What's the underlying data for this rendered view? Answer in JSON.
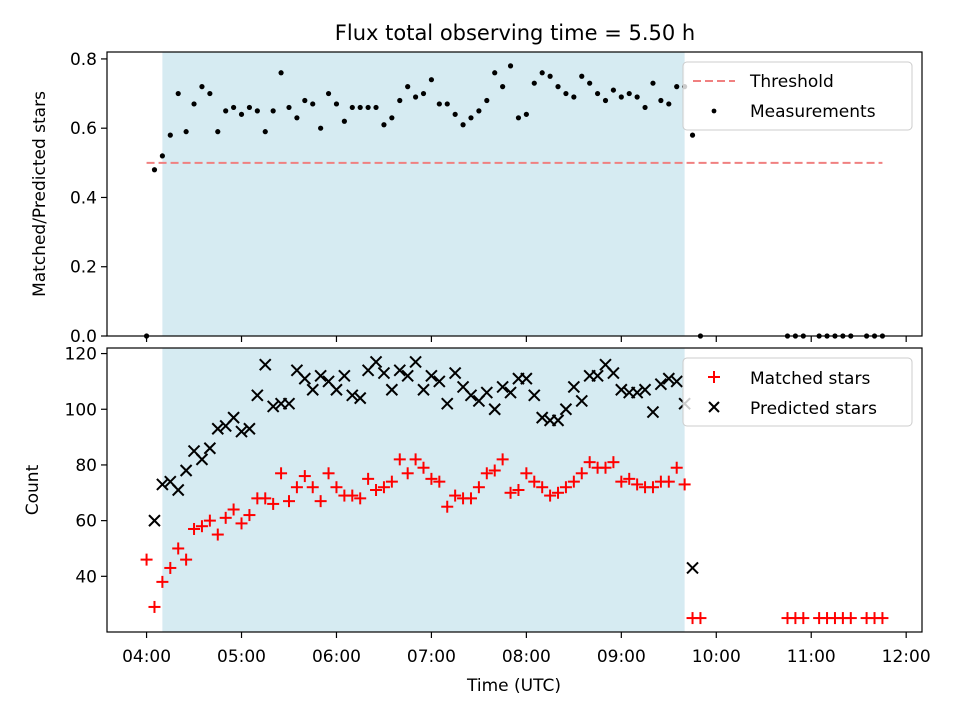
{
  "chart_data": [
    {
      "type": "scatter",
      "title": "Flux total observing time = 5.50 h",
      "xlabel": "",
      "ylabel": "Matched/Predicted stars",
      "ylim": [
        0,
        0.82
      ],
      "yticks": [
        "0.0",
        "0.2",
        "0.4",
        "0.6",
        "0.8"
      ],
      "observing_window": {
        "start": "04:10",
        "end": "09:40"
      },
      "threshold": {
        "name": "Threshold",
        "value": 0.5,
        "x_start": "04:00",
        "x_end": "11:45",
        "color": "#f08080"
      },
      "series": [
        {
          "name": "Measurements",
          "marker": "dot",
          "color": "#000000",
          "points": [
            [
              "04:00",
              0.0
            ],
            [
              "04:05",
              0.48
            ],
            [
              "04:10",
              0.52
            ],
            [
              "04:15",
              0.58
            ],
            [
              "04:20",
              0.7
            ],
            [
              "04:25",
              0.59
            ],
            [
              "04:30",
              0.67
            ],
            [
              "04:35",
              0.72
            ],
            [
              "04:40",
              0.7
            ],
            [
              "04:45",
              0.59
            ],
            [
              "04:50",
              0.65
            ],
            [
              "04:55",
              0.66
            ],
            [
              "05:00",
              0.64
            ],
            [
              "05:05",
              0.66
            ],
            [
              "05:10",
              0.65
            ],
            [
              "05:15",
              0.59
            ],
            [
              "05:20",
              0.65
            ],
            [
              "05:25",
              0.76
            ],
            [
              "05:30",
              0.66
            ],
            [
              "05:35",
              0.63
            ],
            [
              "05:40",
              0.68
            ],
            [
              "05:45",
              0.67
            ],
            [
              "05:50",
              0.6
            ],
            [
              "05:55",
              0.7
            ],
            [
              "06:00",
              0.67
            ],
            [
              "06:05",
              0.62
            ],
            [
              "06:10",
              0.66
            ],
            [
              "06:15",
              0.66
            ],
            [
              "06:20",
              0.66
            ],
            [
              "06:25",
              0.66
            ],
            [
              "06:30",
              0.61
            ],
            [
              "06:35",
              0.63
            ],
            [
              "06:40",
              0.68
            ],
            [
              "06:45",
              0.72
            ],
            [
              "06:50",
              0.69
            ],
            [
              "06:55",
              0.7
            ],
            [
              "07:00",
              0.74
            ],
            [
              "07:05",
              0.67
            ],
            [
              "07:10",
              0.67
            ],
            [
              "07:15",
              0.64
            ],
            [
              "07:20",
              0.61
            ],
            [
              "07:25",
              0.63
            ],
            [
              "07:30",
              0.65
            ],
            [
              "07:35",
              0.68
            ],
            [
              "07:40",
              0.76
            ],
            [
              "07:45",
              0.72
            ],
            [
              "07:50",
              0.78
            ],
            [
              "07:55",
              0.63
            ],
            [
              "08:00",
              0.64
            ],
            [
              "08:05",
              0.73
            ],
            [
              "08:10",
              0.76
            ],
            [
              "08:15",
              0.75
            ],
            [
              "08:20",
              0.72
            ],
            [
              "08:25",
              0.7
            ],
            [
              "08:30",
              0.69
            ],
            [
              "08:35",
              0.75
            ],
            [
              "08:40",
              0.73
            ],
            [
              "08:45",
              0.7
            ],
            [
              "08:50",
              0.68
            ],
            [
              "08:55",
              0.71
            ],
            [
              "09:00",
              0.69
            ],
            [
              "09:05",
              0.7
            ],
            [
              "09:10",
              0.69
            ],
            [
              "09:15",
              0.66
            ],
            [
              "09:20",
              0.73
            ],
            [
              "09:25",
              0.68
            ],
            [
              "09:30",
              0.67
            ],
            [
              "09:35",
              0.72
            ],
            [
              "09:40",
              0.72
            ],
            [
              "09:45",
              0.58
            ],
            [
              "09:50",
              0.0
            ],
            [
              "10:45",
              0.0
            ],
            [
              "10:50",
              0.0
            ],
            [
              "10:55",
              0.0
            ],
            [
              "11:05",
              0.0
            ],
            [
              "11:10",
              0.0
            ],
            [
              "11:15",
              0.0
            ],
            [
              "11:20",
              0.0
            ],
            [
              "11:25",
              0.0
            ],
            [
              "11:35",
              0.0
            ],
            [
              "11:40",
              0.0
            ],
            [
              "11:45",
              0.0
            ]
          ]
        }
      ],
      "legend": {
        "placement": "top-right",
        "entries": [
          "Threshold",
          "Measurements"
        ]
      },
      "grid": false
    },
    {
      "type": "scatter",
      "title": "",
      "xlabel": "Time (UTC)",
      "ylabel": "Count",
      "ylim": [
        20,
        122
      ],
      "yticks": [
        "40",
        "60",
        "80",
        "100",
        "120"
      ],
      "xlim": [
        "03:35",
        "12:10"
      ],
      "xticks": [
        "04:00",
        "05:00",
        "06:00",
        "07:00",
        "08:00",
        "09:00",
        "10:00",
        "11:00",
        "12:00"
      ],
      "observing_window": {
        "start": "04:10",
        "end": "09:40"
      },
      "series": [
        {
          "name": "Matched stars",
          "marker": "plus",
          "color": "#ff0000",
          "points": [
            [
              "04:00",
              46
            ],
            [
              "04:05",
              29
            ],
            [
              "04:10",
              38
            ],
            [
              "04:15",
              43
            ],
            [
              "04:20",
              50
            ],
            [
              "04:25",
              46
            ],
            [
              "04:30",
              57
            ],
            [
              "04:35",
              58
            ],
            [
              "04:40",
              60
            ],
            [
              "04:45",
              55
            ],
            [
              "04:50",
              61
            ],
            [
              "04:55",
              64
            ],
            [
              "05:00",
              59
            ],
            [
              "05:05",
              62
            ],
            [
              "05:10",
              68
            ],
            [
              "05:15",
              68
            ],
            [
              "05:20",
              66
            ],
            [
              "05:25",
              77
            ],
            [
              "05:30",
              67
            ],
            [
              "05:35",
              72
            ],
            [
              "05:40",
              76
            ],
            [
              "05:45",
              72
            ],
            [
              "05:50",
              67
            ],
            [
              "05:55",
              77
            ],
            [
              "06:00",
              72
            ],
            [
              "06:05",
              69
            ],
            [
              "06:10",
              69
            ],
            [
              "06:15",
              68
            ],
            [
              "06:20",
              75
            ],
            [
              "06:25",
              71
            ],
            [
              "06:30",
              72
            ],
            [
              "06:35",
              74
            ],
            [
              "06:40",
              82
            ],
            [
              "06:45",
              77
            ],
            [
              "06:50",
              82
            ],
            [
              "06:55",
              79
            ],
            [
              "07:00",
              75
            ],
            [
              "07:05",
              74
            ],
            [
              "07:10",
              65
            ],
            [
              "07:15",
              69
            ],
            [
              "07:20",
              68
            ],
            [
              "07:25",
              68
            ],
            [
              "07:30",
              72
            ],
            [
              "07:35",
              77
            ],
            [
              "07:40",
              78
            ],
            [
              "07:45",
              82
            ],
            [
              "07:50",
              70
            ],
            [
              "07:55",
              71
            ],
            [
              "08:00",
              77
            ],
            [
              "08:05",
              74
            ],
            [
              "08:10",
              72
            ],
            [
              "08:15",
              69
            ],
            [
              "08:20",
              70
            ],
            [
              "08:25",
              72
            ],
            [
              "08:30",
              74
            ],
            [
              "08:35",
              77
            ],
            [
              "08:40",
              81
            ],
            [
              "08:45",
              79
            ],
            [
              "08:50",
              79
            ],
            [
              "08:55",
              81
            ],
            [
              "09:00",
              74
            ],
            [
              "09:05",
              75
            ],
            [
              "09:10",
              73
            ],
            [
              "09:15",
              72
            ],
            [
              "09:20",
              72
            ],
            [
              "09:25",
              74
            ],
            [
              "09:30",
              74
            ],
            [
              "09:35",
              79
            ],
            [
              "09:40",
              73
            ],
            [
              "09:45",
              25
            ],
            [
              "09:50",
              25
            ],
            [
              "10:45",
              25
            ],
            [
              "10:50",
              25
            ],
            [
              "10:55",
              25
            ],
            [
              "11:05",
              25
            ],
            [
              "11:10",
              25
            ],
            [
              "11:15",
              25
            ],
            [
              "11:20",
              25
            ],
            [
              "11:25",
              25
            ],
            [
              "11:35",
              25
            ],
            [
              "11:40",
              25
            ],
            [
              "11:45",
              25
            ]
          ]
        },
        {
          "name": "Predicted stars",
          "marker": "x",
          "color": "#000000",
          "points": [
            [
              "04:05",
              60
            ],
            [
              "04:10",
              73
            ],
            [
              "04:15",
              74
            ],
            [
              "04:20",
              71
            ],
            [
              "04:25",
              78
            ],
            [
              "04:30",
              85
            ],
            [
              "04:35",
              82
            ],
            [
              "04:40",
              86
            ],
            [
              "04:45",
              93
            ],
            [
              "04:50",
              94
            ],
            [
              "04:55",
              97
            ],
            [
              "05:00",
              92
            ],
            [
              "05:05",
              93
            ],
            [
              "05:10",
              105
            ],
            [
              "05:15",
              116
            ],
            [
              "05:20",
              101
            ],
            [
              "05:25",
              102
            ],
            [
              "05:30",
              102
            ],
            [
              "05:35",
              114
            ],
            [
              "05:40",
              111
            ],
            [
              "05:45",
              107
            ],
            [
              "05:50",
              112
            ],
            [
              "05:55",
              110
            ],
            [
              "06:00",
              107
            ],
            [
              "06:05",
              112
            ],
            [
              "06:10",
              105
            ],
            [
              "06:15",
              104
            ],
            [
              "06:20",
              114
            ],
            [
              "06:25",
              117
            ],
            [
              "06:30",
              113
            ],
            [
              "06:35",
              107
            ],
            [
              "06:40",
              114
            ],
            [
              "06:45",
              112
            ],
            [
              "06:50",
              117
            ],
            [
              "06:55",
              107
            ],
            [
              "07:00",
              112
            ],
            [
              "07:05",
              110
            ],
            [
              "07:10",
              102
            ],
            [
              "07:15",
              113
            ],
            [
              "07:20",
              108
            ],
            [
              "07:25",
              105
            ],
            [
              "07:30",
              103
            ],
            [
              "07:35",
              106
            ],
            [
              "07:40",
              100
            ],
            [
              "07:45",
              108
            ],
            [
              "07:50",
              106
            ],
            [
              "07:55",
              111
            ],
            [
              "08:00",
              111
            ],
            [
              "08:05",
              105
            ],
            [
              "08:10",
              97
            ],
            [
              "08:15",
              96
            ],
            [
              "08:20",
              96
            ],
            [
              "08:25",
              100
            ],
            [
              "08:30",
              108
            ],
            [
              "08:35",
              103
            ],
            [
              "08:40",
              112
            ],
            [
              "08:45",
              112
            ],
            [
              "08:50",
              116
            ],
            [
              "08:55",
              113
            ],
            [
              "09:00",
              107
            ],
            [
              "09:05",
              106
            ],
            [
              "09:10",
              106
            ],
            [
              "09:15",
              107
            ],
            [
              "09:20",
              99
            ],
            [
              "09:25",
              109
            ],
            [
              "09:30",
              111
            ],
            [
              "09:35",
              110
            ],
            [
              "09:40",
              102
            ],
            [
              "09:45",
              43
            ]
          ]
        }
      ],
      "legend": {
        "placement": "top-right",
        "entries": [
          "Matched stars",
          "Predicted stars"
        ]
      },
      "grid": false
    }
  ]
}
